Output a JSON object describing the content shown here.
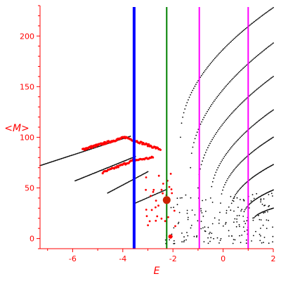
{
  "chart_data": {
    "type": "scatter",
    "title": "",
    "xlabel": "E",
    "ylabel": "<M>",
    "xlim": [
      -7.3,
      2.0
    ],
    "ylim": [
      -10,
      230
    ],
    "x_ticks": [
      -6,
      -4,
      -2,
      0,
      2
    ],
    "y_ticks": [
      0,
      50,
      100,
      150,
      200
    ],
    "x_tick_labels": [
      "-6",
      "-4",
      "-2",
      "0",
      "2"
    ],
    "y_tick_labels": [
      "0",
      "50",
      "100",
      "150",
      "200"
    ],
    "grid": false,
    "legend": "none",
    "colors": {
      "axis": "#ff0000",
      "black_points": "#000000",
      "red_points": "#ff0000",
      "blue_line": "#0000ff",
      "green_line": "#008000",
      "magenta_line": "#ff00ff"
    },
    "vertical_lines": [
      {
        "x": -3.55,
        "color": "#0000ff",
        "width": 4
      },
      {
        "x": -2.25,
        "color": "#008000",
        "width": 2
      },
      {
        "x": -0.95,
        "color": "#ff00ff",
        "width": 2
      },
      {
        "x": 1.0,
        "color": "#ff00ff",
        "width": 2
      }
    ],
    "highlight_points": [
      {
        "x": -2.25,
        "y": 38,
        "color": "#cc2200",
        "size": 5.5
      },
      {
        "x": -2.1,
        "y": 2,
        "color": "#ff0000",
        "size": 3
      }
    ],
    "black_series": [
      {
        "from": [
          -7.3,
          72
        ],
        "to": [
          -3.7,
          101
        ],
        "n": 85
      },
      {
        "from": [
          -5.9,
          57
        ],
        "to": [
          -3.5,
          81
        ],
        "n": 60
      },
      {
        "from": [
          -4.6,
          45
        ],
        "to": [
          -3.0,
          66
        ],
        "n": 40
      },
      {
        "from": [
          -3.5,
          35
        ],
        "to": [
          -2.3,
          48
        ],
        "n": 28
      },
      {
        "from": [
          -1.7,
          100
        ],
        "to": [
          2.0,
          228
        ],
        "n": 85
      },
      {
        "from": [
          -1.3,
          70
        ],
        "to": [
          2.0,
          193
        ],
        "n": 75
      },
      {
        "from": [
          -1.0,
          50
        ],
        "to": [
          2.0,
          160
        ],
        "n": 70
      },
      {
        "from": [
          -0.5,
          40
        ],
        "to": [
          2.0,
          127
        ],
        "n": 60
      },
      {
        "from": [
          -0.1,
          35
        ],
        "to": [
          2.0,
          100
        ],
        "n": 52
      },
      {
        "from": [
          0.3,
          28
        ],
        "to": [
          2.0,
          73
        ],
        "n": 45
      },
      {
        "from": [
          0.8,
          22
        ],
        "to": [
          2.0,
          48
        ],
        "n": 33
      },
      {
        "from": [
          1.2,
          18
        ],
        "to": [
          2.0,
          30
        ],
        "n": 22
      }
    ],
    "black_scatter_region": {
      "x": [
        -2.3,
        2.0
      ],
      "y": [
        -5,
        45
      ],
      "n": 170
    },
    "red_series": [
      {
        "from": [
          -5.6,
          88
        ],
        "to": [
          -3.9,
          100
        ],
        "n": 70
      },
      {
        "from": [
          -3.9,
          100
        ],
        "to": [
          -2.5,
          88
        ],
        "n": 40
      },
      {
        "from": [
          -4.8,
          65
        ],
        "to": [
          -3.6,
          77
        ],
        "n": 30
      },
      {
        "from": [
          -3.6,
          77
        ],
        "to": [
          -2.8,
          80
        ],
        "n": 20
      }
    ],
    "red_scatter_region": {
      "x": [
        -3.2,
        -1.9
      ],
      "y": [
        10,
        70
      ],
      "n": 30
    }
  }
}
